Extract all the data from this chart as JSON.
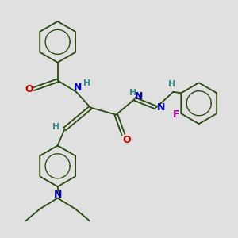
{
  "background_color": "#e0e0e0",
  "bond_color": "#2a4a10",
  "bond_width": 1.3,
  "atom_colors": {
    "O": "#cc0000",
    "N": "#0000bb",
    "F": "#aa00aa",
    "H": "#3a8a8a",
    "C": "#2a4a10"
  },
  "font_size": 8,
  "fig_size": [
    3.0,
    3.0
  ],
  "dpi": 100
}
